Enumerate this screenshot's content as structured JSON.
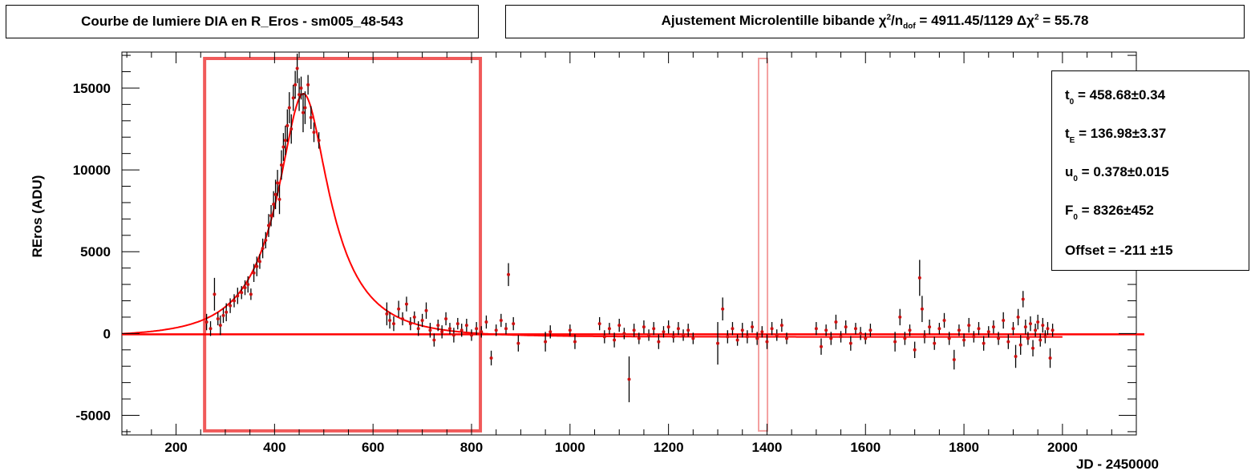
{
  "titles": {
    "left": "Courbe de lumiere DIA en R_Eros - sm005_48-543",
    "right_prefix": "Ajustement Microlentille bibande ",
    "right_chi_symbol": "χ",
    "right_chi_sup": "2",
    "right_slash_n": "/n",
    "right_dof": "dof",
    "right_value": " = 4911.45/1129",
    "right_delta": "  Δχ",
    "right_delta_sup": "2",
    "right_delta_value": " = 55.78"
  },
  "stats": {
    "t0": {
      "name": "t",
      "sub": "0",
      "value": " = 458.68",
      "pm": "±",
      "err": "0.34"
    },
    "tE": {
      "name": "t",
      "sub": "E",
      "value": " = 136.98",
      "pm": "±",
      "err": "3.37"
    },
    "u0": {
      "name": "u",
      "sub": "0",
      "value": " = 0.378",
      "pm": "±",
      "err": "0.015"
    },
    "F0": {
      "name": "F",
      "sub": "0",
      "value": " = 8326",
      "pm": "±",
      "err": "452"
    },
    "offset": {
      "label": "Offset = -211 ",
      "pm": "±",
      "err": "15"
    }
  },
  "chart_data": {
    "type": "scatter",
    "title": "Courbe de lumiere DIA en R_Eros - sm005_48-543",
    "xlabel": "JD - 2450000",
    "ylabel": "REros (ADU)",
    "xlim": [
      90,
      2150
    ],
    "ylim": [
      -6200,
      17200
    ],
    "x_ticks": [
      200,
      400,
      600,
      800,
      1000,
      1200,
      1400,
      1600,
      1800,
      2000
    ],
    "y_ticks": [
      -5000,
      0,
      5000,
      10000,
      15000
    ],
    "fit": {
      "t0": 458.68,
      "tE": 136.98,
      "u0": 0.378,
      "F0": 8326,
      "offset": -211,
      "color": "#ff0000"
    },
    "baseline": {
      "y": -50,
      "color": "#ff0000"
    },
    "highlight_boxes": [
      {
        "x": [
          258,
          818
        ],
        "y": [
          -5950,
          18400
        ],
        "color": "#f05a5a"
      },
      {
        "x": [
          1383,
          1401
        ],
        "y": [
          -5950,
          18400
        ],
        "color": "#f4a0a0"
      }
    ],
    "points": [
      [
        262,
        700,
        500
      ],
      [
        270,
        300,
        450
      ],
      [
        278,
        2400,
        1000
      ],
      [
        285,
        900,
        400
      ],
      [
        290,
        500,
        600
      ],
      [
        296,
        1100,
        450
      ],
      [
        302,
        1300,
        550
      ],
      [
        310,
        1700,
        450
      ],
      [
        318,
        2000,
        400
      ],
      [
        325,
        2300,
        500
      ],
      [
        333,
        2500,
        400
      ],
      [
        340,
        2800,
        450
      ],
      [
        346,
        3000,
        500
      ],
      [
        352,
        2400,
        350
      ],
      [
        358,
        3700,
        550
      ],
      [
        364,
        4100,
        600
      ],
      [
        370,
        4400,
        450
      ],
      [
        376,
        5200,
        600
      ],
      [
        382,
        5700,
        500
      ],
      [
        388,
        6600,
        700
      ],
      [
        393,
        7200,
        650
      ],
      [
        398,
        7900,
        800
      ],
      [
        402,
        8500,
        900
      ],
      [
        406,
        9200,
        800
      ],
      [
        410,
        8200,
        900
      ],
      [
        414,
        10300,
        900
      ],
      [
        418,
        11400,
        850
      ],
      [
        422,
        11800,
        900
      ],
      [
        426,
        12700,
        1000
      ],
      [
        430,
        13800,
        950
      ],
      [
        434,
        12500,
        900
      ],
      [
        438,
        14400,
        800
      ],
      [
        442,
        15200,
        850
      ],
      [
        446,
        16200,
        900
      ],
      [
        450,
        14600,
        1000
      ],
      [
        454,
        15000,
        700
      ],
      [
        458,
        13500,
        1200
      ],
      [
        462,
        13800,
        1000
      ],
      [
        468,
        15200,
        600
      ],
      [
        474,
        13200,
        700
      ],
      [
        480,
        12300,
        600
      ],
      [
        490,
        11800,
        500
      ],
      [
        628,
        1200,
        700
      ],
      [
        634,
        800,
        500
      ],
      [
        642,
        600,
        450
      ],
      [
        652,
        1500,
        500
      ],
      [
        660,
        900,
        400
      ],
      [
        668,
        1800,
        450
      ],
      [
        676,
        600,
        400
      ],
      [
        684,
        1000,
        350
      ],
      [
        692,
        300,
        450
      ],
      [
        700,
        800,
        400
      ],
      [
        708,
        1400,
        500
      ],
      [
        716,
        200,
        450
      ],
      [
        724,
        -400,
        400
      ],
      [
        732,
        500,
        350
      ],
      [
        740,
        100,
        400
      ],
      [
        748,
        900,
        400
      ],
      [
        756,
        300,
        350
      ],
      [
        764,
        -100,
        450
      ],
      [
        772,
        600,
        350
      ],
      [
        780,
        200,
        400
      ],
      [
        790,
        500,
        400
      ],
      [
        800,
        -100,
        350
      ],
      [
        810,
        300,
        400
      ],
      [
        820,
        100,
        350
      ],
      [
        830,
        700,
        400
      ],
      [
        840,
        -1500,
        450
      ],
      [
        850,
        200,
        350
      ],
      [
        860,
        800,
        400
      ],
      [
        870,
        300,
        350
      ],
      [
        875,
        3600,
        700
      ],
      [
        885,
        600,
        400
      ],
      [
        895,
        -600,
        500
      ],
      [
        950,
        -500,
        600
      ],
      [
        960,
        100,
        400
      ],
      [
        1000,
        200,
        350
      ],
      [
        1010,
        -500,
        450
      ],
      [
        1060,
        600,
        400
      ],
      [
        1070,
        -200,
        400
      ],
      [
        1080,
        300,
        350
      ],
      [
        1090,
        -400,
        450
      ],
      [
        1100,
        500,
        400
      ],
      [
        1110,
        0,
        350
      ],
      [
        1120,
        -2800,
        1400
      ],
      [
        1130,
        200,
        400
      ],
      [
        1140,
        -300,
        350
      ],
      [
        1150,
        400,
        400
      ],
      [
        1160,
        -100,
        350
      ],
      [
        1170,
        300,
        400
      ],
      [
        1180,
        -500,
        450
      ],
      [
        1190,
        100,
        350
      ],
      [
        1200,
        400,
        400
      ],
      [
        1210,
        -200,
        350
      ],
      [
        1220,
        300,
        400
      ],
      [
        1230,
        -100,
        350
      ],
      [
        1240,
        200,
        400
      ],
      [
        1250,
        -300,
        350
      ],
      [
        1300,
        -600,
        1300
      ],
      [
        1310,
        1500,
        700
      ],
      [
        1320,
        -200,
        400
      ],
      [
        1330,
        300,
        400
      ],
      [
        1340,
        -400,
        350
      ],
      [
        1350,
        200,
        450
      ],
      [
        1360,
        -200,
        400
      ],
      [
        1370,
        400,
        350
      ],
      [
        1380,
        -300,
        400
      ],
      [
        1390,
        100,
        350
      ],
      [
        1400,
        -500,
        450
      ],
      [
        1410,
        300,
        400
      ],
      [
        1420,
        -100,
        350
      ],
      [
        1430,
        500,
        400
      ],
      [
        1440,
        -300,
        350
      ],
      [
        1500,
        300,
        400
      ],
      [
        1510,
        -800,
        500
      ],
      [
        1520,
        200,
        350
      ],
      [
        1530,
        -300,
        400
      ],
      [
        1540,
        700,
        450
      ],
      [
        1550,
        -200,
        350
      ],
      [
        1560,
        400,
        400
      ],
      [
        1570,
        -600,
        450
      ],
      [
        1580,
        300,
        350
      ],
      [
        1590,
        0,
        400
      ],
      [
        1600,
        -300,
        350
      ],
      [
        1610,
        200,
        400
      ],
      [
        1660,
        -500,
        600
      ],
      [
        1670,
        1000,
        500
      ],
      [
        1680,
        -300,
        400
      ],
      [
        1690,
        200,
        350
      ],
      [
        1700,
        -1000,
        500
      ],
      [
        1710,
        3400,
        1100
      ],
      [
        1715,
        1500,
        800
      ],
      [
        1720,
        -200,
        400
      ],
      [
        1730,
        400,
        450
      ],
      [
        1740,
        -600,
        400
      ],
      [
        1750,
        300,
        350
      ],
      [
        1760,
        800,
        450
      ],
      [
        1770,
        -300,
        400
      ],
      [
        1780,
        -1600,
        600
      ],
      [
        1790,
        200,
        350
      ],
      [
        1800,
        -400,
        400
      ],
      [
        1810,
        500,
        450
      ],
      [
        1820,
        -200,
        350
      ],
      [
        1830,
        300,
        400
      ],
      [
        1840,
        -600,
        450
      ],
      [
        1850,
        100,
        350
      ],
      [
        1860,
        400,
        400
      ],
      [
        1870,
        -300,
        400
      ],
      [
        1880,
        800,
        500
      ],
      [
        1890,
        -500,
        450
      ],
      [
        1900,
        300,
        400
      ],
      [
        1905,
        -1400,
        700
      ],
      [
        1910,
        1000,
        500
      ],
      [
        1915,
        -700,
        600
      ],
      [
        1920,
        2100,
        500
      ],
      [
        1925,
        400,
        450
      ],
      [
        1930,
        -300,
        400
      ],
      [
        1935,
        600,
        450
      ],
      [
        1940,
        -900,
        500
      ],
      [
        1945,
        200,
        400
      ],
      [
        1950,
        700,
        450
      ],
      [
        1955,
        -400,
        400
      ],
      [
        1960,
        500,
        450
      ],
      [
        1965,
        -200,
        400
      ],
      [
        1970,
        300,
        400
      ],
      [
        1975,
        -1500,
        600
      ],
      [
        1980,
        200,
        400
      ]
    ]
  }
}
